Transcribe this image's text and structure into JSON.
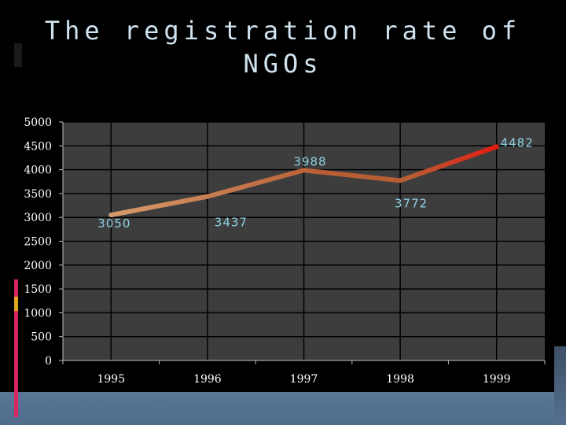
{
  "chart_data": {
    "type": "line",
    "title": "The registration rate of NGOs",
    "categories": [
      "1995",
      "1996",
      "1997",
      "1998",
      "1999"
    ],
    "values": [
      3050,
      3437,
      3988,
      3772,
      4482
    ],
    "data_labels": [
      "3050",
      "3437",
      "3988",
      "3772",
      "4482"
    ],
    "y_ticks": [
      "0",
      "500",
      "1000",
      "1500",
      "2000",
      "2500",
      "3000",
      "3500",
      "4000",
      "4500",
      "5000"
    ],
    "ylim": [
      0,
      5000
    ],
    "grid": true,
    "xlabel": "",
    "ylabel": ""
  },
  "colors": {
    "background": "#000000",
    "plot_background": "#3d3d3d",
    "grid": "#000000",
    "line_start": "#d79b6a",
    "line_mid": "#b85d34",
    "line_end": "#e31b10",
    "label": "#8fd3e3",
    "title": "#cfe3f0"
  }
}
